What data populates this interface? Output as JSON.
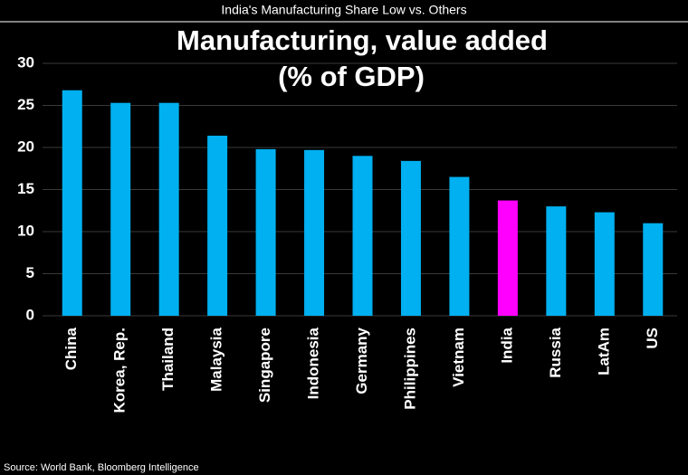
{
  "header": "India's Manufacturing Share Low vs. Others",
  "source": "Source: World Bank, Bloomberg Intelligence",
  "chart_data": {
    "type": "bar",
    "title": "Manufacturing, value added",
    "subtitle": "(% of GDP)",
    "categories": [
      "China",
      "Korea, Rep.",
      "Thailand",
      "Malaysia",
      "Singapore",
      "Indonesia",
      "Germany",
      "Philippines",
      "Vietnam",
      "India",
      "Russia",
      "LatAm",
      "US"
    ],
    "values": [
      26.8,
      25.3,
      25.3,
      21.4,
      19.8,
      19.7,
      19.0,
      18.4,
      16.5,
      13.7,
      13.0,
      12.3,
      11.0
    ],
    "colors": [
      "#00b0f0",
      "#00b0f0",
      "#00b0f0",
      "#00b0f0",
      "#00b0f0",
      "#00b0f0",
      "#00b0f0",
      "#00b0f0",
      "#00b0f0",
      "#ff00ff",
      "#00b0f0",
      "#00b0f0",
      "#00b0f0"
    ],
    "ylim": [
      0,
      30
    ],
    "yticks": [
      0,
      5,
      10,
      15,
      20,
      25,
      30
    ],
    "grid": true
  }
}
